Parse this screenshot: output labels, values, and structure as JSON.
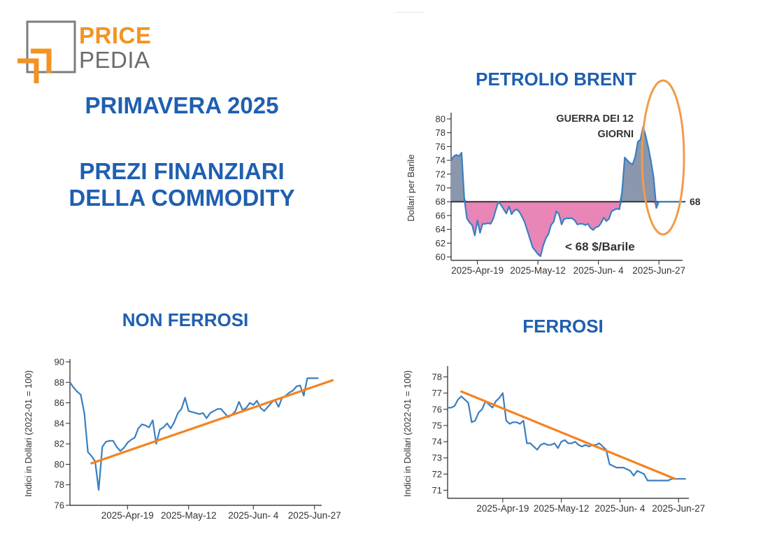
{
  "logo": {
    "price": "PRICE",
    "pedia": "PEDIA"
  },
  "headline": {
    "season": "PRIMAVERA 2025",
    "subtitle_line1": "PREZI FINANZIARI",
    "subtitle_line2": "DELLA COMMODITY"
  },
  "colors": {
    "title_blue": "#1f5fb0",
    "series_blue": "#3a7fc1",
    "trend_orange": "#f58220",
    "above_fill": "#8a97ad",
    "below_fill": "#e985b7",
    "below_label": "#c9679d",
    "annotation_orange": "#f39a4a"
  },
  "chart_data": [
    {
      "id": "brent",
      "type": "area",
      "title": "PETROLIO BRENT",
      "ylabel": "Dollari per Barile",
      "ylim": [
        59.5,
        80.5
      ],
      "yticks": [
        60,
        62,
        64,
        66,
        68,
        70,
        72,
        74,
        76,
        78,
        80
      ],
      "xrange": [
        0,
        88
      ],
      "xticks": [
        {
          "x": 10,
          "label": "2025-Apr-19"
        },
        {
          "x": 33,
          "label": "2025-May-12"
        },
        {
          "x": 56,
          "label": "2025-Jun- 4"
        },
        {
          "x": 79,
          "label": "2025-Jun-27"
        }
      ],
      "reference_line": {
        "value": 68,
        "label": "68"
      },
      "annotations": [
        {
          "text_line1": "GUERRA DEI 12",
          "text_line2": "GIORNI"
        },
        {
          "text": "< 68 $/Barile"
        }
      ],
      "series": [
        {
          "x": [
            0,
            1,
            2,
            3,
            4,
            5,
            6,
            7,
            8,
            9,
            10,
            11,
            12,
            13,
            14,
            15,
            16,
            17,
            18,
            19,
            20,
            21,
            22,
            23,
            24,
            25,
            26,
            27,
            28,
            29,
            30,
            31,
            32,
            33,
            34,
            35,
            36,
            37,
            38,
            39,
            40,
            41,
            42,
            43,
            44,
            45,
            46,
            47,
            48,
            49,
            50,
            51,
            52,
            53,
            54,
            55,
            56,
            57,
            58,
            59,
            60,
            61,
            62,
            63,
            64,
            65,
            66,
            67,
            68,
            69,
            70,
            71,
            72,
            73,
            74,
            75,
            76,
            77,
            78,
            79,
            80,
            81,
            82,
            83,
            84,
            85,
            86,
            87,
            88
          ],
          "values": [
            74.0,
            74.6,
            74.8,
            74.6,
            75.1,
            68.5,
            65.6,
            65.0,
            64.6,
            63.1,
            65.3,
            63.5,
            64.8,
            64.8,
            64.9,
            64.8,
            65.5,
            66.8,
            68.0,
            67.5,
            66.9,
            66.3,
            67.3,
            66.2,
            66.7,
            66.9,
            66.5,
            65.8,
            65.0,
            63.8,
            62.6,
            61.4,
            60.9,
            60.4,
            60.1,
            61.6,
            62.7,
            63.3,
            64.6,
            65.1,
            66.6,
            66.2,
            64.7,
            65.5,
            65.6,
            65.6,
            65.6,
            65.3,
            64.7,
            64.8,
            64.8,
            64.6,
            64.8,
            64.2,
            63.9,
            64.3,
            64.4,
            64.9,
            65.7,
            65.2,
            65.5,
            66.6,
            66.8,
            67.0,
            66.9,
            69.5,
            74.4,
            74.0,
            73.6,
            73.4,
            74.5,
            76.7,
            77.0,
            78.9,
            77.5,
            75.8,
            73.8,
            71.5,
            67.1,
            68.0,
            68.0,
            68.0,
            68.0,
            68.0,
            68.0,
            68.0,
            68.0,
            68.0,
            68.0
          ]
        }
      ]
    },
    {
      "id": "non_ferrosi",
      "type": "line",
      "title": "NON FERROSI",
      "ylabel": "Indici in Dollari (2022-01 = 100)",
      "ylim": [
        76,
        90
      ],
      "yticks": [
        76,
        78,
        80,
        82,
        84,
        86,
        88,
        90
      ],
      "xrange": [
        0,
        70
      ],
      "xticks": [
        {
          "x": 16,
          "label": "2025-Apr-19"
        },
        {
          "x": 33,
          "label": "2025-May-12"
        },
        {
          "x": 51,
          "label": "2025-Jun- 4"
        },
        {
          "x": 68,
          "label": "2025-Jun-27"
        }
      ],
      "series": [
        {
          "x": [
            0,
            1,
            2,
            3,
            4,
            5,
            6,
            7,
            8,
            9,
            10,
            11,
            12,
            13,
            14,
            15,
            16,
            17,
            18,
            19,
            20,
            21,
            22,
            23,
            24,
            25,
            26,
            27,
            28,
            29,
            30,
            31,
            32,
            33,
            34,
            35,
            36,
            37,
            38,
            39,
            40,
            41,
            42,
            43,
            44,
            45,
            46,
            47,
            48,
            49,
            50,
            51,
            52,
            53,
            54,
            55,
            56,
            57,
            58,
            59,
            60,
            61,
            62,
            63,
            64,
            65,
            66,
            67,
            68,
            69
          ],
          "values": [
            88.0,
            87.5,
            87.1,
            86.8,
            85.0,
            81.2,
            80.8,
            80.3,
            77.5,
            81.7,
            82.2,
            82.3,
            82.3,
            81.7,
            81.3,
            81.6,
            82.1,
            82.4,
            82.6,
            83.5,
            83.9,
            83.8,
            83.6,
            84.3,
            82.0,
            83.4,
            83.6,
            84.0,
            83.5,
            84.1,
            85.0,
            85.4,
            86.5,
            85.2,
            85.1,
            85.0,
            84.9,
            85.0,
            84.5,
            85.0,
            85.2,
            85.4,
            85.4,
            85.0,
            84.6,
            84.8,
            85.2,
            86.1,
            85.3,
            85.5,
            86.0,
            85.8,
            86.2,
            85.5,
            85.2,
            85.6,
            86.0,
            86.3,
            85.6,
            86.5,
            86.7,
            87.0,
            87.2,
            87.6,
            87.7,
            86.7,
            88.4,
            88.4,
            88.4,
            88.4
          ]
        }
      ],
      "trendline": {
        "x": [
          6,
          73
        ],
        "values": [
          80.1,
          88.2
        ]
      }
    },
    {
      "id": "ferrosi",
      "type": "line",
      "title": "FERROSI",
      "ylabel": "Indici in Dollari (2022-01 = 100)",
      "ylim": [
        70.5,
        78.5
      ],
      "yticks": [
        71,
        72,
        73,
        74,
        75,
        76,
        77,
        78
      ],
      "xrange": [
        0,
        70
      ],
      "xticks": [
        {
          "x": 16,
          "label": "2025-Apr-19"
        },
        {
          "x": 33,
          "label": "2025-May-12"
        },
        {
          "x": 50,
          "label": "2025-Jun- 4"
        },
        {
          "x": 67,
          "label": "2025-Jun-27"
        }
      ],
      "series": [
        {
          "x": [
            0,
            1,
            2,
            3,
            4,
            5,
            6,
            7,
            8,
            9,
            10,
            11,
            12,
            13,
            14,
            15,
            16,
            17,
            18,
            19,
            20,
            21,
            22,
            23,
            24,
            25,
            26,
            27,
            28,
            29,
            30,
            31,
            32,
            33,
            34,
            35,
            36,
            37,
            38,
            39,
            40,
            41,
            42,
            43,
            44,
            45,
            46,
            47,
            48,
            49,
            50,
            51,
            52,
            53,
            54,
            55,
            56,
            57,
            58,
            59,
            60,
            61,
            62,
            63,
            64,
            65,
            66,
            67,
            68,
            69
          ],
          "values": [
            76.1,
            76.1,
            76.2,
            76.6,
            76.8,
            76.6,
            76.4,
            75.2,
            75.3,
            75.8,
            76.0,
            76.5,
            76.3,
            76.1,
            76.5,
            76.7,
            77.0,
            75.3,
            75.1,
            75.2,
            75.2,
            75.1,
            75.3,
            73.9,
            73.9,
            73.7,
            73.5,
            73.8,
            73.9,
            73.8,
            73.8,
            73.9,
            73.6,
            74.0,
            74.1,
            73.9,
            73.9,
            74.0,
            73.8,
            73.7,
            73.8,
            73.7,
            73.8,
            73.8,
            73.9,
            73.7,
            73.5,
            72.6,
            72.5,
            72.4,
            72.4,
            72.4,
            72.3,
            72.2,
            71.9,
            72.2,
            72.1,
            72.0,
            71.6,
            71.6,
            71.6,
            71.6,
            71.6,
            71.6,
            71.6,
            71.7,
            71.7,
            71.7,
            71.7,
            71.7
          ]
        }
      ],
      "trendline": {
        "x": [
          4,
          66
        ],
        "values": [
          77.1,
          71.7
        ]
      }
    }
  ]
}
